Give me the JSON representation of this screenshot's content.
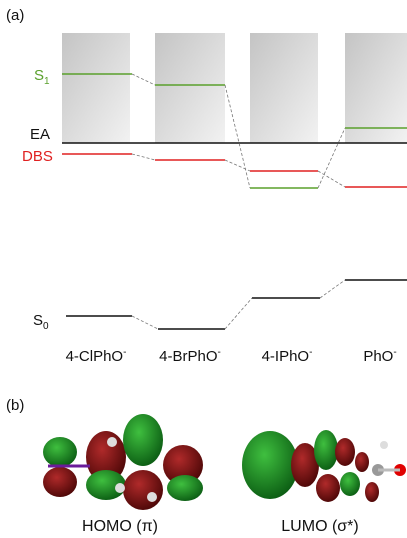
{
  "panel_a": {
    "label": "(a)",
    "levels": [
      {
        "label": "S",
        "sub": "1"
      },
      {
        "label": "EA"
      },
      {
        "label": "DBS"
      },
      {
        "label": "S",
        "sub": "0"
      }
    ],
    "molecules": [
      {
        "name": "4-ClPhO",
        "charge": "-"
      },
      {
        "name": "4-BrPhO",
        "charge": "-"
      },
      {
        "name": "4-IPhO",
        "charge": "-"
      },
      {
        "name": "PhO",
        "charge": "-"
      }
    ]
  },
  "panel_b": {
    "label": "(b)",
    "captions": [
      "HOMO (π)",
      "LUMO (σ*)"
    ]
  }
}
